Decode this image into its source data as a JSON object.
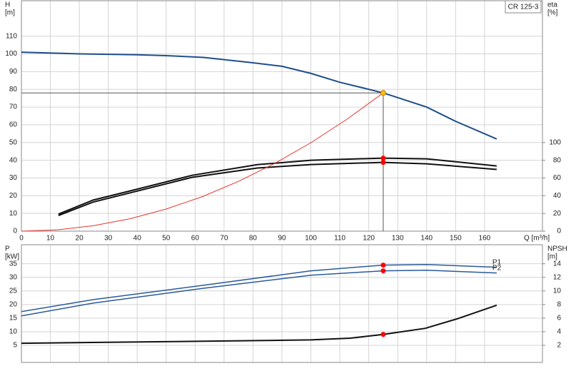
{
  "model": "CR 125-3",
  "chart_data": [
    {
      "type": "line",
      "y_label": "H",
      "y_unit": "[m]",
      "y2_label": "eta",
      "y2_unit": "[%]",
      "x_label": "Q [m³/h]",
      "xlim": [
        0,
        180
      ],
      "xticks": [
        0,
        10,
        20,
        30,
        40,
        50,
        60,
        70,
        80,
        90,
        100,
        110,
        120,
        130,
        140,
        150,
        160
      ],
      "ylim": [
        0,
        130
      ],
      "yticks": [
        0,
        10,
        20,
        30,
        40,
        50,
        60,
        70,
        80,
        90,
        100,
        110
      ],
      "y2lim": [
        0,
        260
      ],
      "y2ticks": [
        0,
        20,
        40,
        60,
        80,
        100
      ],
      "grid": true,
      "show_xtick_labels": true,
      "series": [
        {
          "color": "#1f4e8c",
          "width": 2,
          "x": [
            0,
            20,
            40,
            50,
            63,
            80,
            90,
            100,
            110,
            120,
            125,
            140,
            150,
            164.2
          ],
          "values": [
            101,
            100,
            99.5,
            99,
            98,
            95,
            93,
            89,
            84,
            80,
            78,
            70,
            62,
            52
          ]
        },
        {
          "color": "#111111",
          "width": 2,
          "axis": "y2",
          "x": [
            12.8,
            24.7,
            39.5,
            59,
            81.5,
            100,
            125,
            140,
            164.2
          ],
          "values": [
            19.2,
            35,
            47,
            63,
            75,
            80,
            82.4,
            81.6,
            73.6
          ]
        },
        {
          "color": "#111111",
          "width": 2,
          "axis": "y2",
          "x": [
            12.8,
            24.7,
            39.5,
            59,
            81.5,
            100,
            125,
            140,
            164.2
          ],
          "values": [
            17.6,
            32.8,
            44.8,
            60.8,
            71.2,
            75.2,
            77.6,
            76,
            69.6
          ]
        },
        {
          "color": "#e8322a",
          "width": 1,
          "x": [
            0,
            12.5,
            25,
            37.5,
            50,
            62.5,
            75,
            87.5,
            100,
            112.5,
            125
          ],
          "values": [
            0,
            0.78,
            3.12,
            7.02,
            12.48,
            19.5,
            28.08,
            38.22,
            49.92,
            63.18,
            78
          ]
        }
      ],
      "points": [
        {
          "x": 125,
          "y": 78,
          "color": "#ffc000",
          "crosshair": true
        },
        {
          "x": 125,
          "y": 82.4,
          "axis": "y2",
          "color": "#ff0000"
        },
        {
          "x": 125,
          "y": 77.6,
          "axis": "y2",
          "color": "#ff0000"
        }
      ]
    },
    {
      "type": "line",
      "y_label": "P",
      "y_unit": "[kW]",
      "y2_label": "NPSH",
      "y2_unit": "[m]",
      "xlim": [
        0,
        180
      ],
      "xticks": [
        0,
        10,
        20,
        30,
        40,
        50,
        60,
        70,
        80,
        90,
        100,
        110,
        120,
        130,
        140,
        150,
        160
      ],
      "ylim": [
        -1.3,
        42
      ],
      "yticks": [
        5,
        10,
        15,
        20,
        25,
        30,
        35
      ],
      "y2lim": [
        -0.52,
        16.8
      ],
      "y2ticks": [
        2,
        4,
        6,
        8,
        10,
        12,
        14
      ],
      "grid": true,
      "show_xtick_labels": false,
      "series": [
        {
          "name": "P1",
          "color": "#2a5a9a",
          "width": 1.5,
          "x": [
            0,
            24.7,
            63,
            100,
            125,
            140,
            164.2
          ],
          "values": [
            17.4,
            21.8,
            27.1,
            32.4,
            34.5,
            34.7,
            33.7
          ]
        },
        {
          "name": "P2",
          "color": "#2a5a9a",
          "width": 1.5,
          "x": [
            0,
            24.7,
            63,
            100,
            125,
            140,
            164.2
          ],
          "values": [
            15.8,
            20.5,
            26,
            30.8,
            32.4,
            32.6,
            31.6
          ]
        },
        {
          "color": "#111111",
          "width": 2,
          "axis": "y2",
          "x": [
            0,
            63,
            100,
            113.6,
            125,
            139.5,
            150.6,
            164.2
          ],
          "values": [
            2.3,
            2.6,
            2.8,
            3.05,
            3.6,
            4.5,
            5.9,
            7.9
          ]
        }
      ],
      "points": [
        {
          "x": 125,
          "y": 34.5,
          "color": "#ff0000"
        },
        {
          "x": 125,
          "y": 32.4,
          "color": "#ff0000"
        },
        {
          "x": 125,
          "y": 3.6,
          "axis": "y2",
          "color": "#ff0000"
        }
      ]
    }
  ]
}
